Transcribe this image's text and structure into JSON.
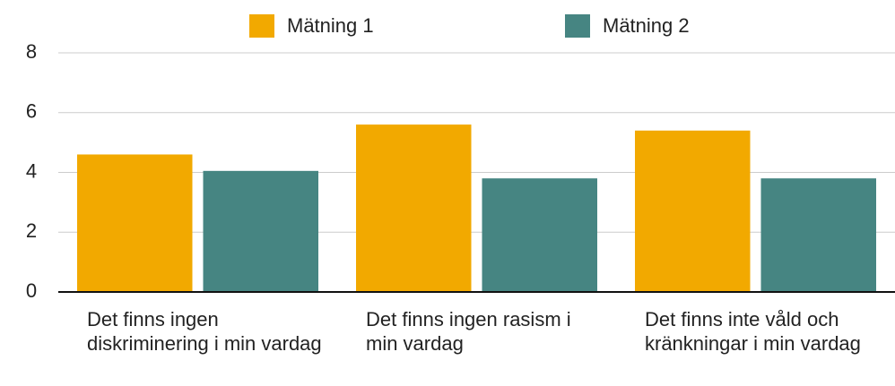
{
  "chart_data": {
    "type": "bar",
    "categories": [
      "Det finns ingen diskriminering i min vardag",
      "Det finns ingen rasism i min vardag",
      "Det finns inte våld och kränkningar i min vardag"
    ],
    "series": [
      {
        "name": "Mätning 1",
        "color": "#f2a900",
        "values": [
          4.6,
          5.6,
          5.4
        ]
      },
      {
        "name": "Mätning 2",
        "color": "#468582",
        "values": [
          4.05,
          3.8,
          3.8
        ]
      }
    ],
    "ylim": [
      0,
      8
    ],
    "yticks": [
      0,
      2,
      4,
      6,
      8
    ],
    "grid": true,
    "legend": "top"
  }
}
